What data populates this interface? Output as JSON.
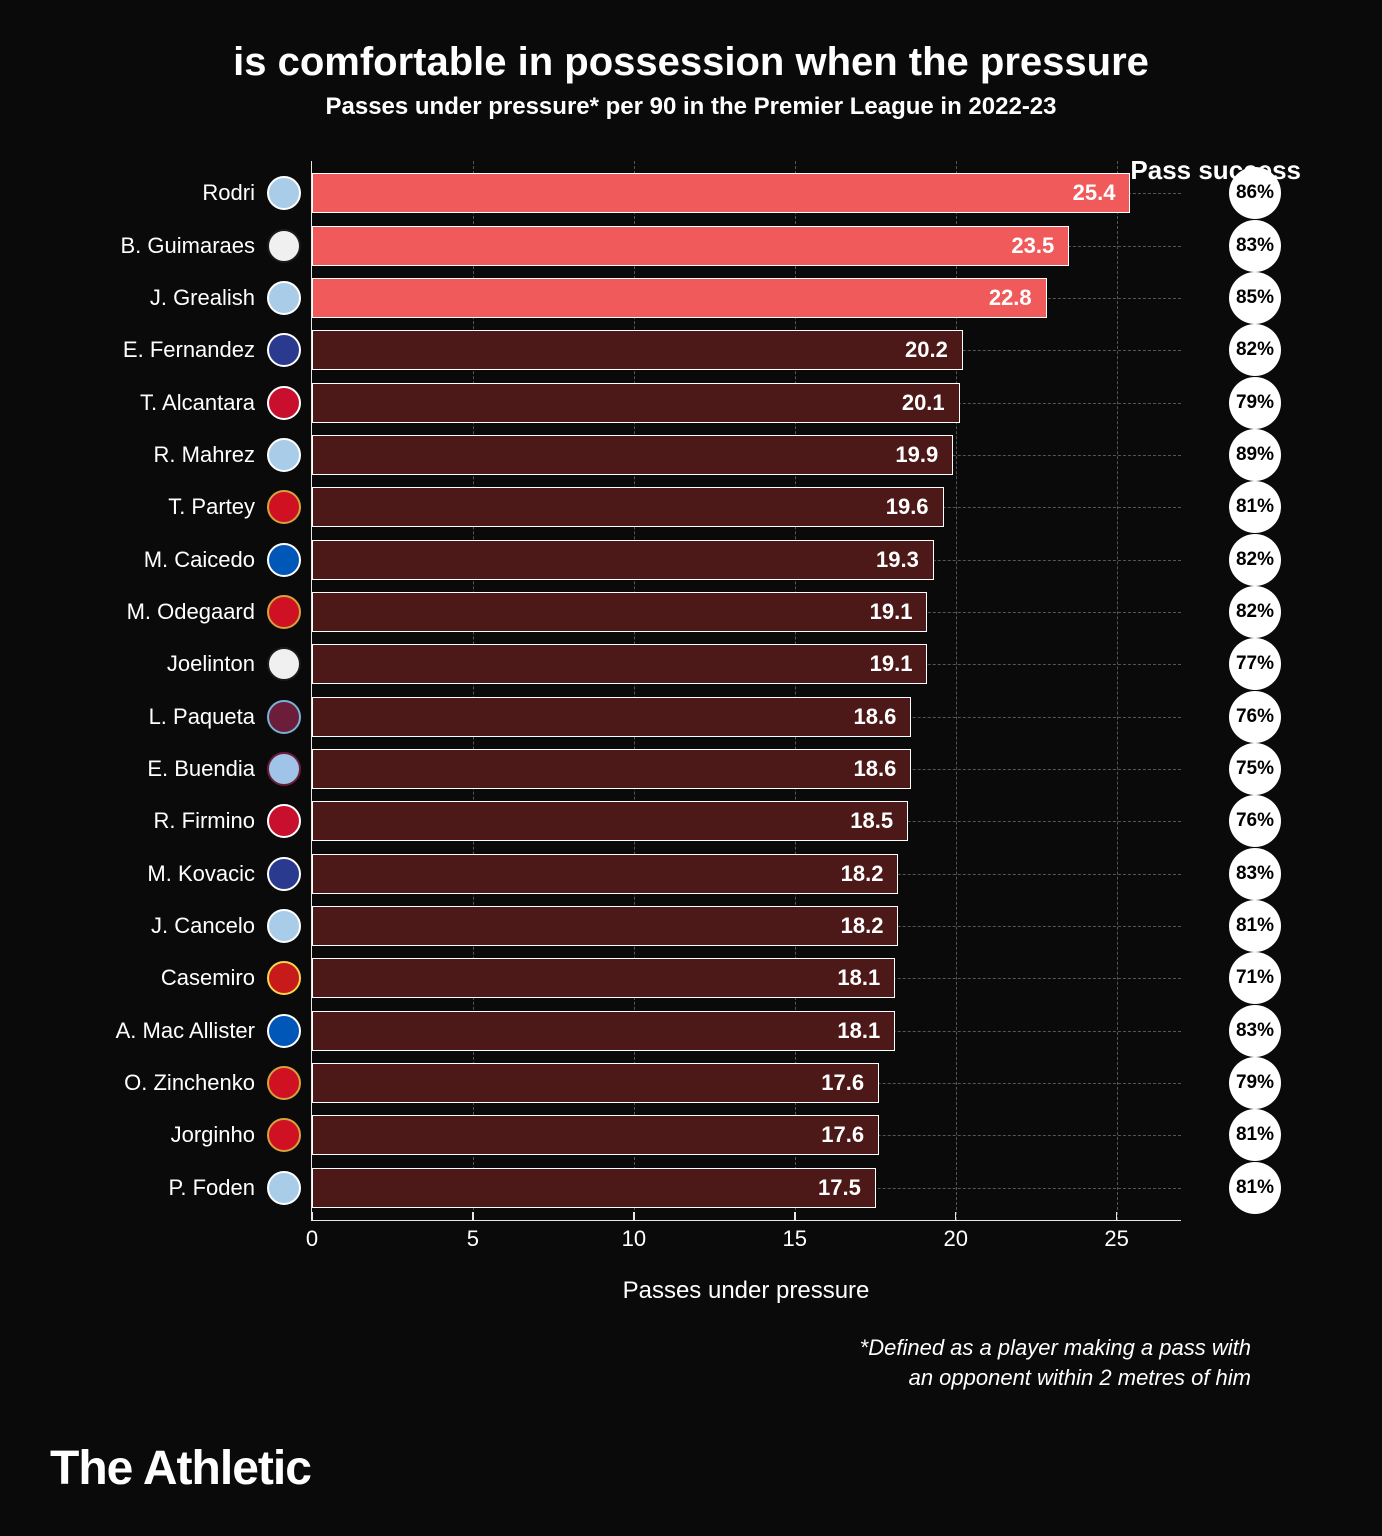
{
  "title": "is comfortable in possession when the pressure",
  "subtitle": "Passes under pressure* per 90 in the Premier League in 2022-23",
  "success_header": "Pass success",
  "xlabel": "Passes under pressure",
  "footnote_line1": "*Defined as a player making a pass with",
  "footnote_line2": "an opponent within 2 metres of him",
  "brand": "The Athletic",
  "chart": {
    "type": "bar",
    "xlim": [
      0,
      27
    ],
    "xticks": [
      0,
      5,
      10,
      15,
      20,
      25
    ],
    "grid_color": "#555555",
    "axis_color": "#e8e8e8",
    "background_color": "#0a0a0a",
    "highlight_color": "#f05a5a",
    "normal_color": "#4d1818",
    "bar_border": "#ffffff",
    "circle_bg": "#ffffff",
    "circle_text": "#000000"
  },
  "players": [
    {
      "name": "Rodri",
      "value": 25.4,
      "success": "86%",
      "highlighted": true,
      "badge_bg": "#a9cde8",
      "badge_ring": "#ffffff"
    },
    {
      "name": "B. Guimaraes",
      "value": 23.5,
      "success": "83%",
      "highlighted": true,
      "badge_bg": "#f0f0f0",
      "badge_ring": "#1a1a1a"
    },
    {
      "name": "J. Grealish",
      "value": 22.8,
      "success": "85%",
      "highlighted": true,
      "badge_bg": "#a9cde8",
      "badge_ring": "#ffffff"
    },
    {
      "name": "E. Fernandez",
      "value": 20.2,
      "success": "82%",
      "highlighted": false,
      "badge_bg": "#2a3a8f",
      "badge_ring": "#ffffff"
    },
    {
      "name": "T. Alcantara",
      "value": 20.1,
      "success": "79%",
      "highlighted": false,
      "badge_bg": "#c8102e",
      "badge_ring": "#ffffff"
    },
    {
      "name": "R. Mahrez",
      "value": 19.9,
      "success": "89%",
      "highlighted": false,
      "badge_bg": "#a9cde8",
      "badge_ring": "#ffffff"
    },
    {
      "name": "T. Partey",
      "value": 19.6,
      "success": "81%",
      "highlighted": false,
      "badge_bg": "#d01124",
      "badge_ring": "#d4a33a"
    },
    {
      "name": "M. Caicedo",
      "value": 19.3,
      "success": "82%",
      "highlighted": false,
      "badge_bg": "#0057b8",
      "badge_ring": "#ffffff"
    },
    {
      "name": "M. Odegaard",
      "value": 19.1,
      "success": "82%",
      "highlighted": false,
      "badge_bg": "#d01124",
      "badge_ring": "#d4a33a"
    },
    {
      "name": "Joelinton",
      "value": 19.1,
      "success": "77%",
      "highlighted": false,
      "badge_bg": "#f0f0f0",
      "badge_ring": "#1a1a1a"
    },
    {
      "name": "L. Paqueta",
      "value": 18.6,
      "success": "76%",
      "highlighted": false,
      "badge_bg": "#6b1d3a",
      "badge_ring": "#7bb1d6"
    },
    {
      "name": "E. Buendia",
      "value": 18.6,
      "success": "75%",
      "highlighted": false,
      "badge_bg": "#9fc4e8",
      "badge_ring": "#6b1d3a"
    },
    {
      "name": "R. Firmino",
      "value": 18.5,
      "success": "76%",
      "highlighted": false,
      "badge_bg": "#c8102e",
      "badge_ring": "#ffffff"
    },
    {
      "name": "M. Kovacic",
      "value": 18.2,
      "success": "83%",
      "highlighted": false,
      "badge_bg": "#2a3a8f",
      "badge_ring": "#ffffff"
    },
    {
      "name": "J. Cancelo",
      "value": 18.2,
      "success": "81%",
      "highlighted": false,
      "badge_bg": "#a9cde8",
      "badge_ring": "#ffffff"
    },
    {
      "name": "Casemiro",
      "value": 18.1,
      "success": "71%",
      "highlighted": false,
      "badge_bg": "#c71a1a",
      "badge_ring": "#f7d54a"
    },
    {
      "name": "A. Mac Allister",
      "value": 18.1,
      "success": "83%",
      "highlighted": false,
      "badge_bg": "#0057b8",
      "badge_ring": "#ffffff"
    },
    {
      "name": "O. Zinchenko",
      "value": 17.6,
      "success": "79%",
      "highlighted": false,
      "badge_bg": "#d01124",
      "badge_ring": "#d4a33a"
    },
    {
      "name": "Jorginho",
      "value": 17.6,
      "success": "81%",
      "highlighted": false,
      "badge_bg": "#d01124",
      "badge_ring": "#d4a33a"
    },
    {
      "name": "P. Foden",
      "value": 17.5,
      "success": "81%",
      "highlighted": false,
      "badge_bg": "#a9cde8",
      "badge_ring": "#ffffff"
    }
  ]
}
